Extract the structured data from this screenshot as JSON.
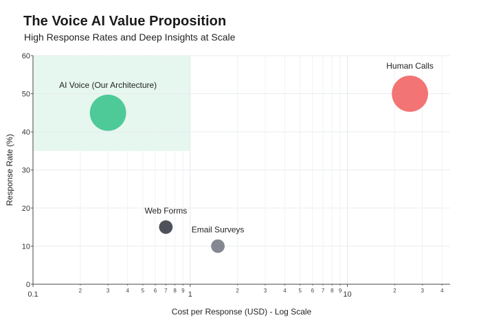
{
  "chart_data": {
    "type": "scatter",
    "title": "The Voice AI Value Proposition",
    "subtitle": "High Response Rates and Deep Insights at Scale",
    "xlabel": "Cost per Response (USD) - Log Scale",
    "ylabel": "Response Rate (%)",
    "x_scale": "log",
    "xlim": [
      0.1,
      45
    ],
    "ylim": [
      0,
      60
    ],
    "grid": true,
    "x_major_ticks": [
      0.1,
      1,
      10
    ],
    "x_major_tick_labels": [
      "0.1",
      "1",
      "10"
    ],
    "x_minor_ticks": [
      0.2,
      0.3,
      0.4,
      0.5,
      0.6,
      0.7,
      0.8,
      0.9,
      2,
      3,
      4,
      5,
      6,
      7,
      8,
      9,
      20,
      30,
      40
    ],
    "x_minor_tick_labels": [
      "2",
      "3",
      "4",
      "5",
      "6",
      "7",
      "8",
      "9",
      "2",
      "3",
      "4",
      "5",
      "6",
      "7",
      "8",
      "9",
      "2",
      "3",
      "4"
    ],
    "y_ticks": [
      0,
      10,
      20,
      30,
      40,
      50,
      60
    ],
    "y_tick_labels": [
      "0",
      "10",
      "20",
      "30",
      "40",
      "50",
      "60"
    ],
    "highlight_region": {
      "x": [
        0.1,
        1
      ],
      "y": [
        35,
        60
      ],
      "color": "#e6f7ef"
    },
    "points": [
      {
        "label": "AI Voice (Our Architecture)",
        "x": 0.3,
        "y": 45,
        "size": 4,
        "color": "#3cc48d"
      },
      {
        "label": "Web Forms",
        "x": 0.7,
        "y": 15,
        "size": 1.5,
        "color": "#3b3e47"
      },
      {
        "label": "Email Surveys",
        "x": 1.5,
        "y": 10,
        "size": 1.5,
        "color": "#757b85"
      },
      {
        "label": "Human Calls",
        "x": 25,
        "y": 50,
        "size": 4,
        "color": "#f26565"
      }
    ]
  }
}
